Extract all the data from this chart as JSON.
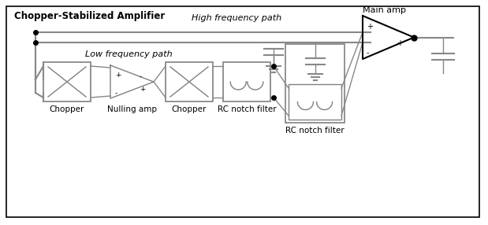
{
  "title": "Chopper-Stabilized Amplifier",
  "bg_color": "#ffffff",
  "border_color": "#000000",
  "component_color": "#808080",
  "line_color": "#888888",
  "text_color": "#000000",
  "labels": {
    "chopper1": "Chopper",
    "nulling_amp": "Nulling amp",
    "chopper2": "Chopper",
    "rc_notch1": "RC notch filter",
    "rc_notch2": "RC notch filter",
    "main_amp": "Main amp",
    "high_freq": "High frequency path",
    "low_freq": "Low frequency path"
  },
  "figsize": [
    6.19,
    2.86
  ],
  "dpi": 100
}
